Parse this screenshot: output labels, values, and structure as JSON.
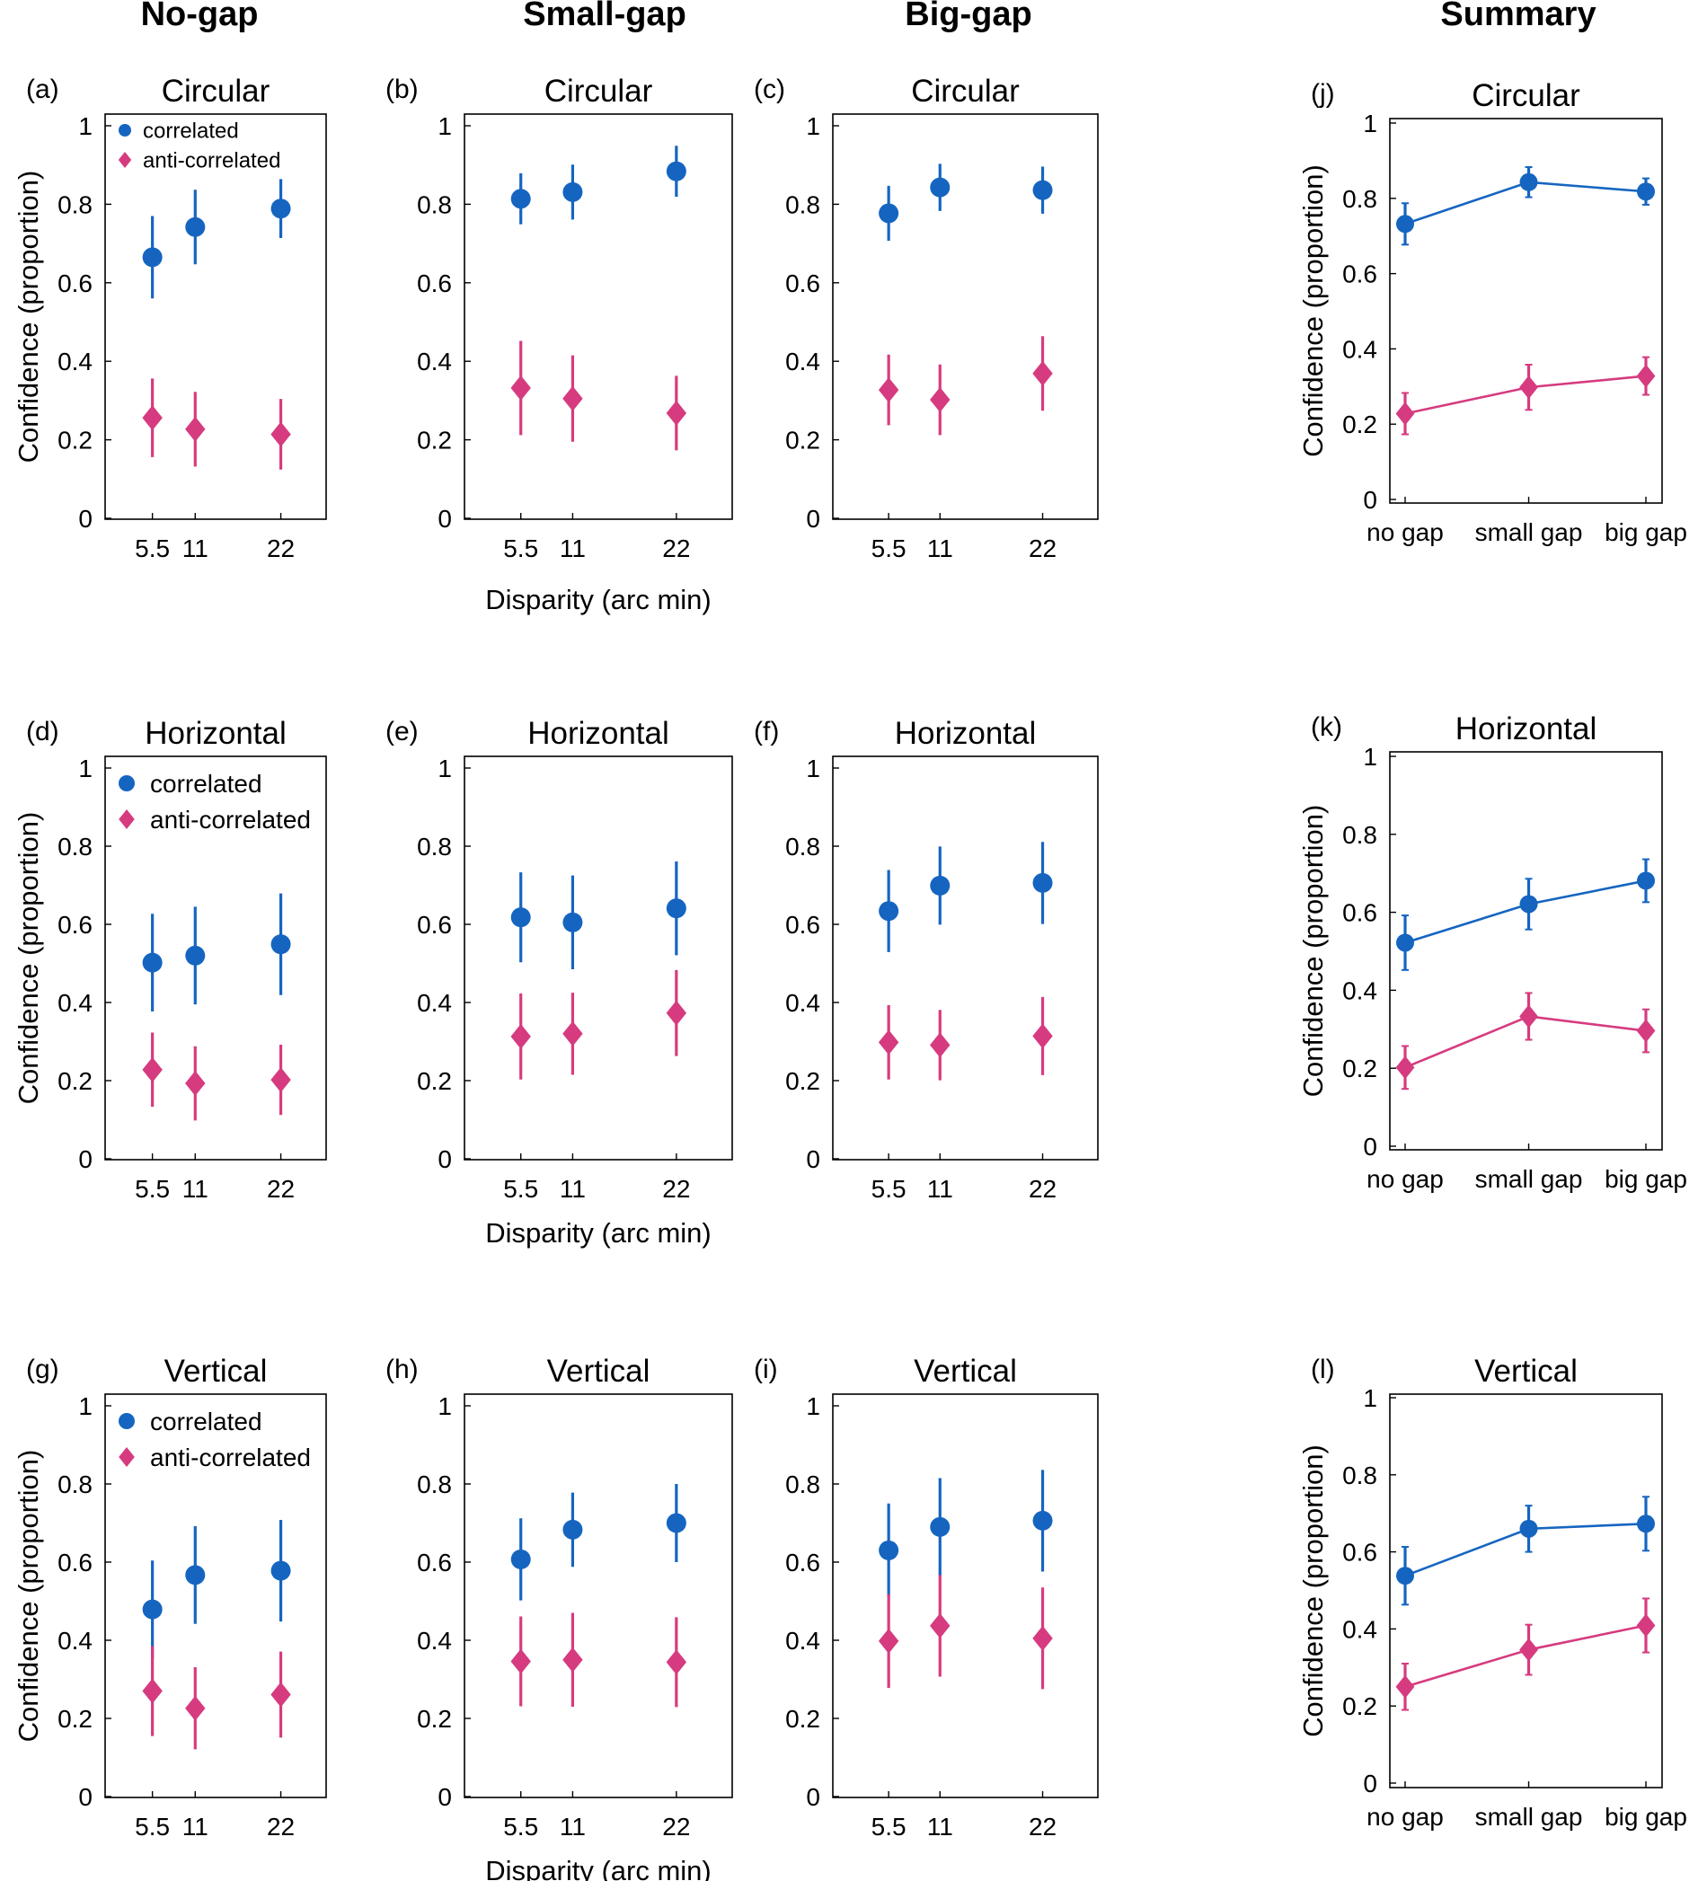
{
  "figure": {
    "column_titles": [
      "No-gap",
      "Small-gap",
      "Big-gap",
      "Summary"
    ],
    "shared_xlabel": "Disparity (arc min)",
    "ylabel": "Confidence (proportion)",
    "colors": {
      "correlated": "#1565c0",
      "anti_correlated": "#d63b7f"
    }
  },
  "chart_data": [
    {
      "id": "a",
      "label": "(a)",
      "title": "Circular",
      "type": "scatter",
      "xlabel": "",
      "ylabel": "Confidence (proportion)",
      "x": [
        5.5,
        11,
        22
      ],
      "xticklabels": [
        "5.5",
        "11",
        "22"
      ],
      "ylim": [
        0,
        1
      ],
      "yticks": [
        "0",
        "0.2",
        "0.4",
        "0.6",
        "0.8",
        "1"
      ],
      "legend": {
        "entries": [
          "correlated",
          "anti-correlated"
        ],
        "placement": "top-left"
      },
      "series": [
        {
          "name": "correlated",
          "marker": "circle",
          "values": [
            0.665,
            0.742,
            0.789
          ],
          "err": [
            0.105,
            0.095,
            0.075
          ]
        },
        {
          "name": "anti-correlated",
          "marker": "diamond",
          "values": [
            0.256,
            0.227,
            0.214
          ],
          "err": [
            0.1,
            0.095,
            0.09
          ]
        }
      ]
    },
    {
      "id": "b",
      "label": "(b)",
      "title": "Circular",
      "type": "scatter",
      "xlabel": "Disparity (arc min)",
      "ylabel": "",
      "x": [
        5.5,
        11,
        22
      ],
      "xticklabels": [
        "5.5",
        "11",
        "22"
      ],
      "ylim": [
        0,
        1
      ],
      "yticks": [
        "0",
        "0.2",
        "0.4",
        "0.6",
        "0.8",
        "1"
      ],
      "series": [
        {
          "name": "correlated",
          "marker": "circle",
          "values": [
            0.814,
            0.831,
            0.884
          ],
          "err": [
            0.065,
            0.07,
            0.065
          ]
        },
        {
          "name": "anti-correlated",
          "marker": "diamond",
          "values": [
            0.332,
            0.305,
            0.268
          ],
          "err": [
            0.12,
            0.11,
            0.095
          ]
        }
      ]
    },
    {
      "id": "c",
      "label": "(c)",
      "title": "Circular",
      "type": "scatter",
      "xlabel": "",
      "ylabel": "",
      "x": [
        5.5,
        11,
        22
      ],
      "xticklabels": [
        "5.5",
        "11",
        "22"
      ],
      "ylim": [
        0,
        1
      ],
      "yticks": [
        "0",
        "0.2",
        "0.4",
        "0.6",
        "0.8",
        "1"
      ],
      "series": [
        {
          "name": "correlated",
          "marker": "circle",
          "values": [
            0.777,
            0.843,
            0.836
          ],
          "err": [
            0.07,
            0.06,
            0.06
          ]
        },
        {
          "name": "anti-correlated",
          "marker": "diamond",
          "values": [
            0.327,
            0.302,
            0.369
          ],
          "err": [
            0.09,
            0.09,
            0.095
          ]
        }
      ]
    },
    {
      "id": "d",
      "label": "(d)",
      "title": "Horizontal",
      "type": "scatter",
      "xlabel": "",
      "ylabel": "Confidence (proportion)",
      "x": [
        5.5,
        11,
        22
      ],
      "xticklabels": [
        "5.5",
        "11",
        "22"
      ],
      "ylim": [
        0,
        1
      ],
      "yticks": [
        "0",
        "0.2",
        "0.4",
        "0.6",
        "0.8",
        "1"
      ],
      "legend": {
        "entries": [
          "correlated",
          "anti-correlated"
        ],
        "placement": "top-left"
      },
      "series": [
        {
          "name": "correlated",
          "marker": "circle",
          "values": [
            0.502,
            0.52,
            0.549
          ],
          "err": [
            0.125,
            0.125,
            0.13
          ]
        },
        {
          "name": "anti-correlated",
          "marker": "diamond",
          "values": [
            0.228,
            0.193,
            0.202
          ],
          "err": [
            0.095,
            0.095,
            0.09
          ]
        }
      ]
    },
    {
      "id": "e",
      "label": "(e)",
      "title": "Horizontal",
      "type": "scatter",
      "xlabel": "Disparity (arc min)",
      "ylabel": "",
      "x": [
        5.5,
        11,
        22
      ],
      "xticklabels": [
        "5.5",
        "11",
        "22"
      ],
      "ylim": [
        0,
        1
      ],
      "yticks": [
        "0",
        "0.2",
        "0.4",
        "0.6",
        "0.8",
        "1"
      ],
      "series": [
        {
          "name": "correlated",
          "marker": "circle",
          "values": [
            0.618,
            0.605,
            0.641
          ],
          "err": [
            0.115,
            0.12,
            0.12
          ]
        },
        {
          "name": "anti-correlated",
          "marker": "diamond",
          "values": [
            0.313,
            0.32,
            0.373
          ],
          "err": [
            0.11,
            0.105,
            0.11
          ]
        }
      ]
    },
    {
      "id": "f",
      "label": "(f)",
      "title": "Horizontal",
      "type": "scatter",
      "xlabel": "",
      "ylabel": "",
      "x": [
        5.5,
        11,
        22
      ],
      "xticklabels": [
        "5.5",
        "11",
        "22"
      ],
      "ylim": [
        0,
        1
      ],
      "yticks": [
        "0",
        "0.2",
        "0.4",
        "0.6",
        "0.8",
        "1"
      ],
      "series": [
        {
          "name": "correlated",
          "marker": "circle",
          "values": [
            0.634,
            0.699,
            0.706
          ],
          "err": [
            0.105,
            0.1,
            0.105
          ]
        },
        {
          "name": "anti-correlated",
          "marker": "diamond",
          "values": [
            0.298,
            0.291,
            0.314
          ],
          "err": [
            0.095,
            0.09,
            0.1
          ]
        }
      ]
    },
    {
      "id": "g",
      "label": "(g)",
      "title": "Vertical",
      "type": "scatter",
      "xlabel": "",
      "ylabel": "Confidence (proportion)",
      "x": [
        5.5,
        11,
        22
      ],
      "xticklabels": [
        "5.5",
        "11",
        "22"
      ],
      "ylim": [
        0,
        1
      ],
      "yticks": [
        "0",
        "0.2",
        "0.4",
        "0.6",
        "0.8",
        "1"
      ],
      "legend": {
        "entries": [
          "correlated",
          "anti-correlated"
        ],
        "placement": "top-left"
      },
      "series": [
        {
          "name": "correlated",
          "marker": "circle",
          "values": [
            0.479,
            0.567,
            0.578
          ],
          "err": [
            0.125,
            0.125,
            0.13
          ]
        },
        {
          "name": "anti-correlated",
          "marker": "diamond",
          "values": [
            0.27,
            0.226,
            0.261
          ],
          "err": [
            0.115,
            0.105,
            0.11
          ]
        }
      ]
    },
    {
      "id": "h",
      "label": "(h)",
      "title": "Vertical",
      "type": "scatter",
      "xlabel": "Disparity (arc min)",
      "ylabel": "",
      "x": [
        5.5,
        11,
        22
      ],
      "xticklabels": [
        "5.5",
        "11",
        "22"
      ],
      "ylim": [
        0,
        1
      ],
      "yticks": [
        "0",
        "0.2",
        "0.4",
        "0.6",
        "0.8",
        "1"
      ],
      "series": [
        {
          "name": "correlated",
          "marker": "circle",
          "values": [
            0.607,
            0.683,
            0.7
          ],
          "err": [
            0.105,
            0.095,
            0.1
          ]
        },
        {
          "name": "anti-correlated",
          "marker": "diamond",
          "values": [
            0.346,
            0.35,
            0.344
          ],
          "err": [
            0.115,
            0.12,
            0.115
          ]
        }
      ]
    },
    {
      "id": "i",
      "label": "(i)",
      "title": "Vertical",
      "type": "scatter",
      "xlabel": "",
      "ylabel": "",
      "x": [
        5.5,
        11,
        22
      ],
      "xticklabels": [
        "5.5",
        "11",
        "22"
      ],
      "ylim": [
        0,
        1
      ],
      "yticks": [
        "0",
        "0.2",
        "0.4",
        "0.6",
        "0.8",
        "1"
      ],
      "series": [
        {
          "name": "correlated",
          "marker": "circle",
          "values": [
            0.63,
            0.69,
            0.706
          ],
          "err": [
            0.12,
            0.125,
            0.13
          ]
        },
        {
          "name": "anti-correlated",
          "marker": "diamond",
          "values": [
            0.398,
            0.437,
            0.405
          ],
          "err": [
            0.12,
            0.13,
            0.13
          ]
        }
      ]
    },
    {
      "id": "j",
      "label": "(j)",
      "title": "Circular",
      "type": "line",
      "xlabel": "",
      "ylabel": "Confidence (proportion)",
      "categories": [
        "no gap",
        "small gap",
        "big gap"
      ],
      "ylim": [
        0,
        1
      ],
      "yticks": [
        "0",
        "0.2",
        "0.4",
        "0.6",
        "0.8",
        "1"
      ],
      "series": [
        {
          "name": "correlated",
          "marker": "circle",
          "values": [
            0.732,
            0.843,
            0.818
          ],
          "err": [
            0.055,
            0.04,
            0.035
          ]
        },
        {
          "name": "anti-correlated",
          "marker": "diamond",
          "values": [
            0.228,
            0.298,
            0.328
          ],
          "err": [
            0.055,
            0.06,
            0.05
          ]
        }
      ]
    },
    {
      "id": "k",
      "label": "(k)",
      "title": "Horizontal",
      "type": "line",
      "xlabel": "",
      "ylabel": "Confidence (proportion)",
      "categories": [
        "no gap",
        "small gap",
        "big gap"
      ],
      "ylim": [
        0,
        1
      ],
      "yticks": [
        "0",
        "0.2",
        "0.4",
        "0.6",
        "0.8",
        "1"
      ],
      "series": [
        {
          "name": "correlated",
          "marker": "circle",
          "values": [
            0.522,
            0.621,
            0.681
          ],
          "err": [
            0.07,
            0.065,
            0.055
          ]
        },
        {
          "name": "anti-correlated",
          "marker": "diamond",
          "values": [
            0.202,
            0.333,
            0.296
          ],
          "err": [
            0.055,
            0.06,
            0.055
          ]
        }
      ]
    },
    {
      "id": "l",
      "label": "(l)",
      "title": "Vertical",
      "type": "line",
      "xlabel": "",
      "ylabel": "Confidence (proportion)",
      "categories": [
        "no gap",
        "small gap",
        "big gap"
      ],
      "ylim": [
        0,
        1
      ],
      "yticks": [
        "0",
        "0.2",
        "0.4",
        "0.6",
        "0.8",
        "1"
      ],
      "series": [
        {
          "name": "correlated",
          "marker": "circle",
          "values": [
            0.538,
            0.66,
            0.673
          ],
          "err": [
            0.075,
            0.06,
            0.07
          ]
        },
        {
          "name": "anti-correlated",
          "marker": "diamond",
          "values": [
            0.25,
            0.346,
            0.409
          ],
          "err": [
            0.06,
            0.065,
            0.07
          ]
        }
      ]
    }
  ]
}
